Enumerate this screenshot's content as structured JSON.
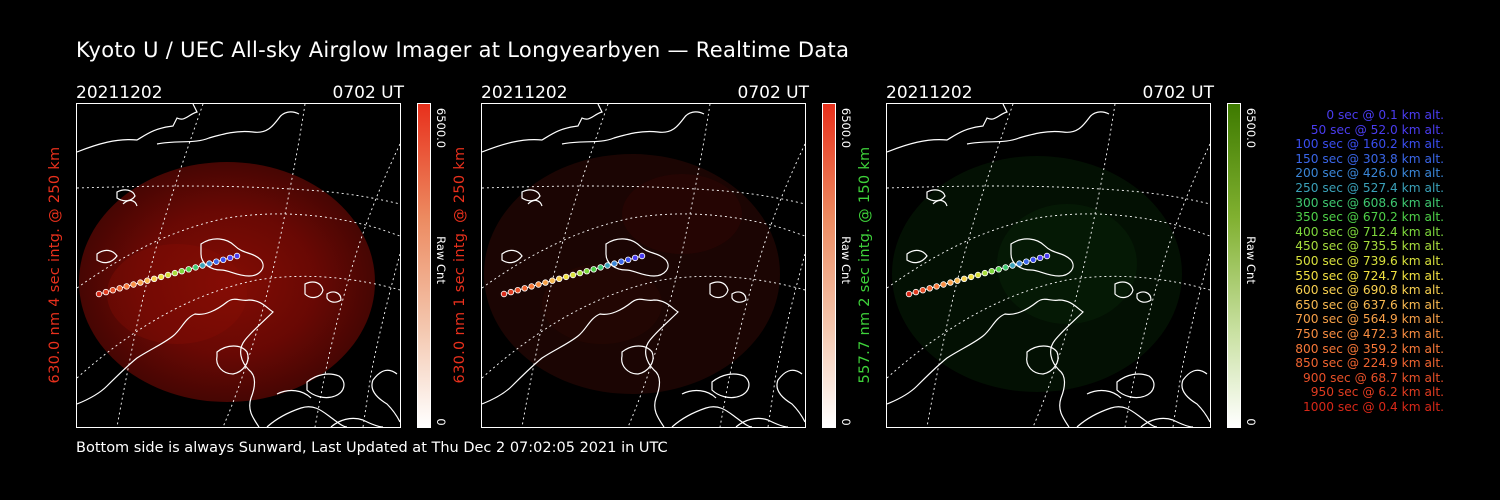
{
  "title": "Kyoto U / UEC All-sky Airglow Imager at Longyearbyen — Realtime Data",
  "footer": "Bottom side is always Sunward, Last Updated at Thu Dec  2 07:02:05 2021 in UTC",
  "panels": [
    {
      "date": "20211202",
      "time": "0702 UT",
      "ylabel": "630.0 nm 4 sec intg. @ 250 km",
      "label_color": "#e8301c",
      "cbar_max": "6500.0",
      "cbar_min": "0",
      "cbar_label": "Raw Cnt",
      "cbar_color": "#e8301c"
    },
    {
      "date": "20211202",
      "time": "0702 UT",
      "ylabel": "630.0 nm 1 sec intg. @ 250 km",
      "label_color": "#e8301c",
      "cbar_max": "6500.0",
      "cbar_min": "0",
      "cbar_label": "Raw Cnt",
      "cbar_color": "#e8301c"
    },
    {
      "date": "20211202",
      "time": "0702 UT",
      "ylabel": "557.7 nm 2 sec intg. @ 150 km",
      "label_color": "#3ed23a",
      "cbar_max": "6500.0",
      "cbar_min": "0",
      "cbar_label": "Raw Cnt",
      "cbar_color": "#4c8a00"
    }
  ],
  "legend": [
    {
      "text": "0 sec @   0.1 km alt.",
      "color": "#4a3cf0"
    },
    {
      "text": "50 sec @  52.0 km alt.",
      "color": "#4a3cf0"
    },
    {
      "text": "100 sec @ 160.2 km alt.",
      "color": "#3a4ef0"
    },
    {
      "text": "150 sec @ 303.8 km alt.",
      "color": "#3a66e8"
    },
    {
      "text": "200 sec @ 426.0 km alt.",
      "color": "#3a86d8"
    },
    {
      "text": "250 sec @ 527.4 km alt.",
      "color": "#3aa0b8"
    },
    {
      "text": "300 sec @ 608.6 km alt.",
      "color": "#3ec870"
    },
    {
      "text": "350 sec @ 670.2 km alt.",
      "color": "#4ed048"
    },
    {
      "text": "400 sec @ 712.4 km alt.",
      "color": "#7ed83c"
    },
    {
      "text": "450 sec @ 735.5 km alt.",
      "color": "#a8dc3c"
    },
    {
      "text": "500 sec @ 739.6 km alt.",
      "color": "#d8e03c"
    },
    {
      "text": "550 sec @ 724.7 km alt.",
      "color": "#f0e040"
    },
    {
      "text": "600 sec @ 690.8 km alt.",
      "color": "#f8d050"
    },
    {
      "text": "650 sec @ 637.6 km alt.",
      "color": "#f8b850"
    },
    {
      "text": "700 sec @ 564.9 km alt.",
      "color": "#f8a048"
    },
    {
      "text": "750 sec @ 472.3 km alt.",
      "color": "#f88c40"
    },
    {
      "text": "800 sec @ 359.2 km alt.",
      "color": "#f87838"
    },
    {
      "text": "850 sec @ 224.9 km alt.",
      "color": "#f06430"
    },
    {
      "text": "900 sec @  68.7 km alt.",
      "color": "#e85028"
    },
    {
      "text": "950 sec @   6.2 km alt.",
      "color": "#e03c20"
    },
    {
      "text": "1000 sec @   0.4 km alt.",
      "color": "#d82818"
    }
  ]
}
